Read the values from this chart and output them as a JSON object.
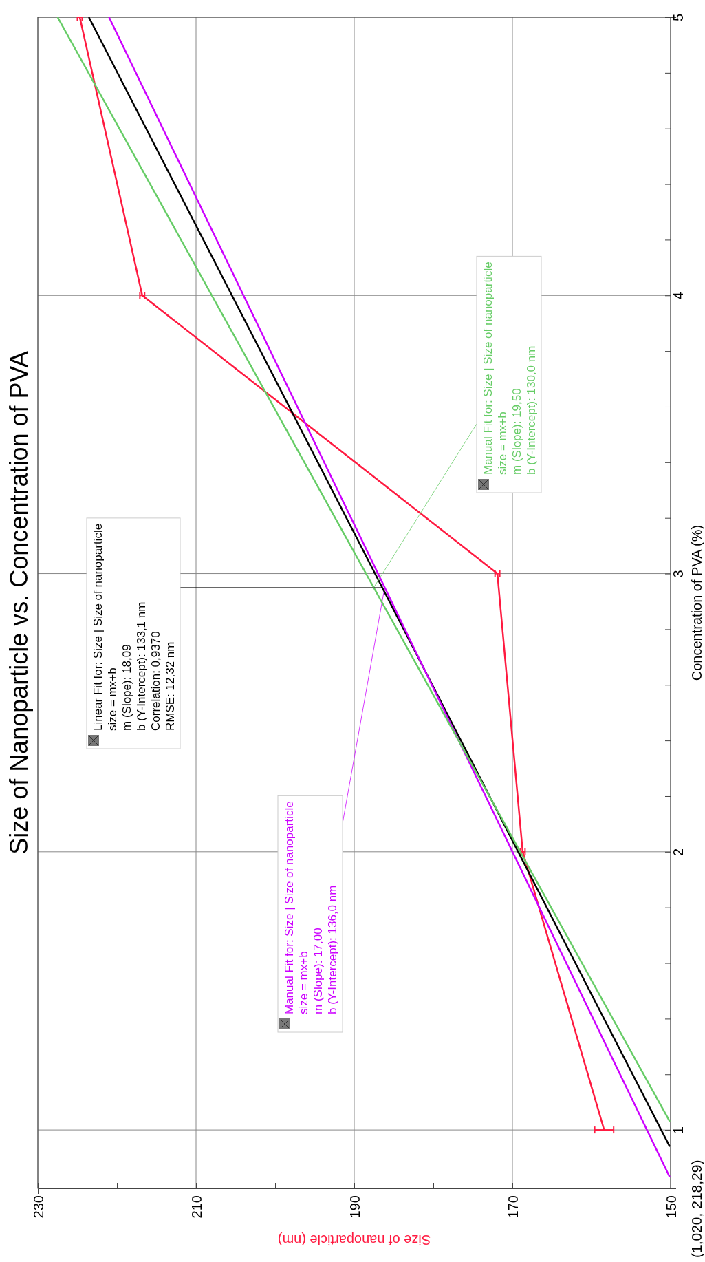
{
  "chart_data": {
    "type": "line",
    "title": "Size of Nanoparticle vs. Concentration of PVA",
    "xlabel": "Size of nanoparticle (nm)",
    "ylabel": "Concentration of PVA (%)",
    "xlim": [
      230,
      150
    ],
    "xticks": [
      230,
      {
        "value": 220,
        "label": null
      },
      210,
      {
        "value": 200,
        "label": null
      },
      190,
      {
        "value": 180,
        "label": null
      },
      170,
      {
        "value": 160,
        "label": null
      },
      150
    ],
    "ylim": [
      0.79,
      5
    ],
    "yticks": [
      1,
      {
        "value": 1.2,
        "label": null
      },
      {
        "value": 1.4,
        "label": null
      },
      {
        "value": 1.6,
        "label": null
      },
      {
        "value": 1.8,
        "label": null
      },
      2,
      {
        "value": 2.2,
        "label": null
      },
      {
        "value": 2.4,
        "label": null
      },
      {
        "value": 2.6,
        "label": null
      },
      {
        "value": 2.8,
        "label": null
      },
      3,
      {
        "value": 3.2,
        "label": null
      },
      {
        "value": 3.4,
        "label": null
      },
      {
        "value": 3.6,
        "label": null
      },
      {
        "value": 3.8,
        "label": null
      },
      4,
      {
        "value": 4.2,
        "label": null
      },
      {
        "value": 4.4,
        "label": null
      },
      {
        "value": 4.6,
        "label": null
      },
      {
        "value": 4.8,
        "label": null
      },
      5
    ],
    "grid": true,
    "marker": "none",
    "line_style": "solid",
    "series": [
      {
        "color": "#ff1a40",
        "x": [
          158.4,
          168.7,
          171.9,
          216.8,
          224.7
        ],
        "values": [
          1,
          2,
          3,
          4,
          5
        ],
        "xerrors": [
          1.2,
          0.3,
          0.3,
          0.3,
          0.3
        ]
      },
      {
        "color": "#000000",
        "x": [
          150.1,
          223.55
        ],
        "values": [
          0.94,
          5
        ]
      },
      {
        "color": "#cc00ff",
        "x": [
          150.1,
          221
        ],
        "values": [
          0.83,
          5
        ]
      },
      {
        "color": "#66cc66",
        "x": [
          150.1,
          227.5
        ],
        "values": [
          1.03,
          5
        ]
      }
    ],
    "annotations": [
      {
        "text": "Linear Fit for: Size | Size of nanoparticle\nsize = mx+b\nm (Slope): 18,09\nb (Y-Intercept): 133,1 nm\nCorrelation: 0,9370\nRMSE: 12,32 nm",
        "x": 186.47,
        "y": 2.95
      },
      {
        "text": "Manual Fit for: Size | Size of nanoparticle\nsize = mx+b\nm (Slope): 17,00\nb (Y-Intercept): 136,0 nm",
        "x": 186.15,
        "y": 2.95
      },
      {
        "text": "Manual Fit for: Size | Size of nanoparticle\nsize = mx+b\nm (Slope): 19,50\nb (Y-Intercept): 130,0 nm",
        "x": 187.53,
        "y": 2.95
      },
      "(1,020, 218,29)"
    ]
  }
}
